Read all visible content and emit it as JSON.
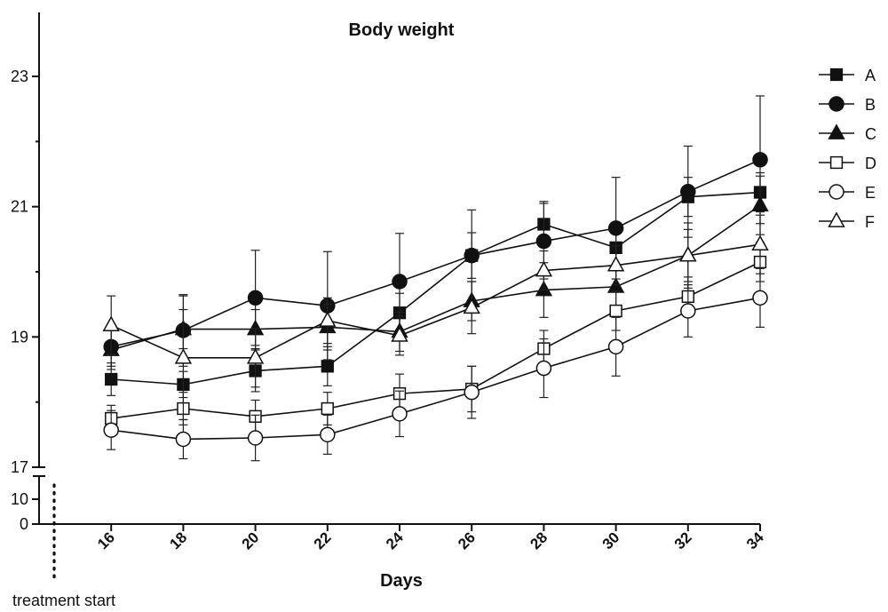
{
  "chart_data": {
    "type": "line",
    "title": "Body weight",
    "xlabel": "Days",
    "ylabel": "",
    "x": [
      16,
      18,
      20,
      22,
      24,
      26,
      28,
      30,
      32,
      34
    ],
    "x_ticks": [
      "16",
      "18",
      "20",
      "22",
      "24",
      "26",
      "28",
      "30",
      "32",
      "34"
    ],
    "xlim": [
      14,
      34
    ],
    "y_segments": [
      {
        "range": [
          0,
          15
        ],
        "ticks": [
          "0",
          "10"
        ]
      },
      {
        "range": [
          17,
          24
        ],
        "ticks": [
          "17",
          "19",
          "21",
          "23"
        ]
      }
    ],
    "annotation": "treatment start",
    "legend_position": "right",
    "series": [
      {
        "name": "A",
        "marker": "square-filled",
        "values": [
          18.35,
          18.27,
          18.48,
          18.55,
          19.37,
          20.25,
          20.73,
          20.37,
          21.15,
          21.22
        ],
        "errors": [
          0.25,
          0.2,
          0.32,
          0.3,
          0.3,
          0.35,
          0.35,
          0.3,
          0.3,
          0.3
        ]
      },
      {
        "name": "B",
        "marker": "circle-filled",
        "values": [
          18.85,
          19.1,
          19.6,
          19.48,
          19.85,
          20.25,
          20.47,
          20.67,
          21.23,
          21.72
        ],
        "errors": [
          0.3,
          0.55,
          0.73,
          0.83,
          0.74,
          0.7,
          0.58,
          0.78,
          0.7,
          0.98
        ]
      },
      {
        "name": "C",
        "marker": "triangle-filled",
        "values": [
          18.8,
          19.12,
          19.12,
          19.15,
          19.08,
          19.55,
          19.72,
          19.77,
          20.25,
          21.02
        ],
        "errors": [
          0.3,
          0.3,
          0.3,
          0.35,
          0.3,
          0.3,
          0.42,
          0.3,
          0.5,
          0.45
        ]
      },
      {
        "name": "D",
        "marker": "square-open",
        "values": [
          17.75,
          17.9,
          17.78,
          17.9,
          18.13,
          18.2,
          18.82,
          19.4,
          19.62,
          20.15
        ],
        "errors": [
          0.2,
          0.25,
          0.25,
          0.25,
          0.3,
          0.35,
          0.28,
          0.3,
          0.3,
          0.3
        ]
      },
      {
        "name": "E",
        "marker": "circle-open",
        "values": [
          17.57,
          17.43,
          17.45,
          17.5,
          17.82,
          18.15,
          18.52,
          18.85,
          19.4,
          19.6
        ],
        "errors": [
          0.3,
          0.3,
          0.35,
          0.3,
          0.35,
          0.4,
          0.45,
          0.45,
          0.4,
          0.45
        ]
      },
      {
        "name": "F",
        "marker": "triangle-open",
        "values": [
          19.18,
          18.68,
          18.68,
          19.25,
          19.02,
          19.45,
          20.02,
          20.1,
          20.25,
          20.42
        ],
        "errors": [
          0.45,
          0.95,
          0.45,
          0.35,
          0.3,
          0.4,
          0.3,
          0.3,
          0.4,
          0.45
        ]
      }
    ]
  }
}
